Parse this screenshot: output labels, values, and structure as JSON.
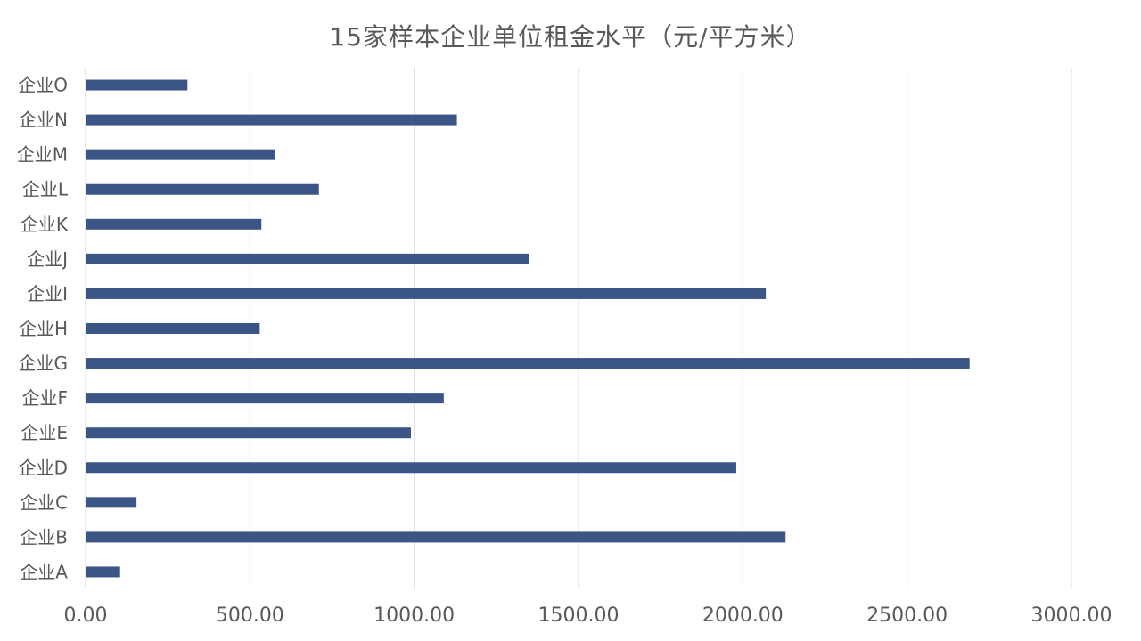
{
  "chart_data": {
    "type": "bar",
    "orientation": "horizontal",
    "title": "15家样本企业单位租金水平（元/平方米）",
    "xlabel": "",
    "ylabel": "",
    "categories": [
      "企业O",
      "企业N",
      "企业M",
      "企业L",
      "企业K",
      "企业J",
      "企业I",
      "企业H",
      "企业G",
      "企业F",
      "企业E",
      "企业D",
      "企业C",
      "企业B",
      "企业A"
    ],
    "values": [
      310,
      1130,
      575,
      710,
      535,
      1350,
      2070,
      530,
      2690,
      1090,
      990,
      1980,
      155,
      2130,
      105
    ],
    "xlim": [
      0,
      3000
    ],
    "xticks": [
      "0.00",
      "500.00",
      "1000.00",
      "1500.00",
      "2000.00",
      "2500.00",
      "3000.00"
    ],
    "grid": true,
    "legend": "none",
    "bar_color": "#3b5587"
  }
}
